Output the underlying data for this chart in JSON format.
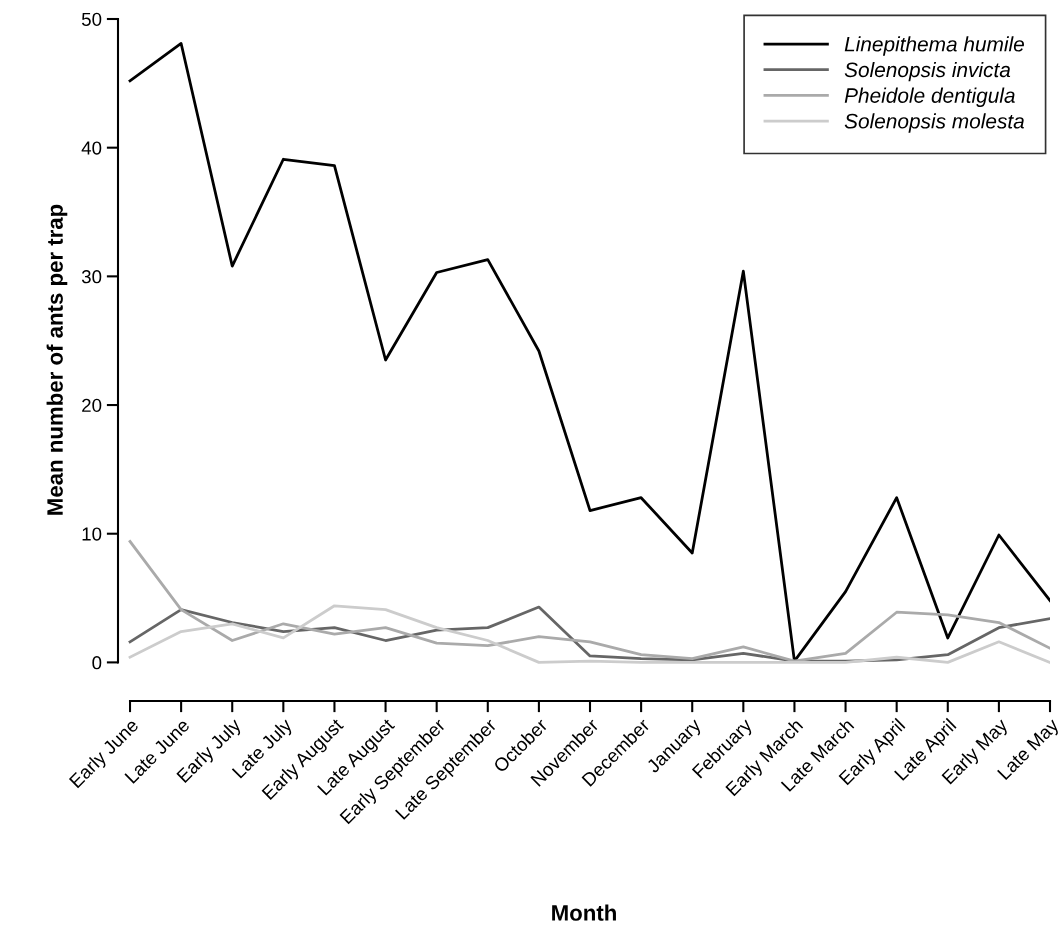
{
  "chart_data": {
    "type": "line",
    "xlabel": "Month",
    "ylabel": "Mean number of ants per trap",
    "categories": [
      "Early June",
      "Late June",
      "Early July",
      "Late July",
      "Early August",
      "Late August",
      "Early September",
      "Late September",
      "October",
      "November",
      "December",
      "January",
      "February",
      "Early March",
      "Late March",
      "Early April",
      "Late April",
      "Early May",
      "Late May"
    ],
    "series": [
      {
        "name": "Linepithema humile",
        "color": "#000000",
        "values": [
          45.2,
          48.1,
          30.8,
          39.1,
          38.6,
          23.5,
          30.3,
          31.3,
          24.2,
          11.8,
          12.8,
          8.5,
          30.4,
          0.1,
          5.5,
          12.8,
          1.9,
          9.9,
          4.8
        ]
      },
      {
        "name": "Solenopsis invicta",
        "color": "#666666",
        "values": [
          1.6,
          4.1,
          3.1,
          2.4,
          2.7,
          1.7,
          2.5,
          2.7,
          4.3,
          0.5,
          0.3,
          0.2,
          0.7,
          0.1,
          0.1,
          0.2,
          0.6,
          2.7,
          3.4
        ]
      },
      {
        "name": "Pheidole dentigula",
        "color": "#aaaaaa",
        "values": [
          9.4,
          4.1,
          1.7,
          3.0,
          2.2,
          2.7,
          1.5,
          1.3,
          2.0,
          1.6,
          0.6,
          0.3,
          1.2,
          0.1,
          0.7,
          3.9,
          3.7,
          3.1,
          1.1
        ]
      },
      {
        "name": "Solenopsis molesta",
        "color": "#cccccc",
        "values": [
          0.4,
          2.4,
          3.0,
          1.9,
          4.4,
          4.1,
          2.7,
          1.7,
          0.0,
          0.1,
          0.0,
          0.0,
          0.0,
          0.0,
          0.0,
          0.4,
          0.0,
          1.6,
          0.0
        ]
      }
    ],
    "ylim": [
      -3,
      50
    ],
    "yticks": [
      0,
      10,
      20,
      30,
      40,
      50
    ],
    "grid": false,
    "legend": "top right",
    "marker": "none",
    "line_style": "solid"
  }
}
